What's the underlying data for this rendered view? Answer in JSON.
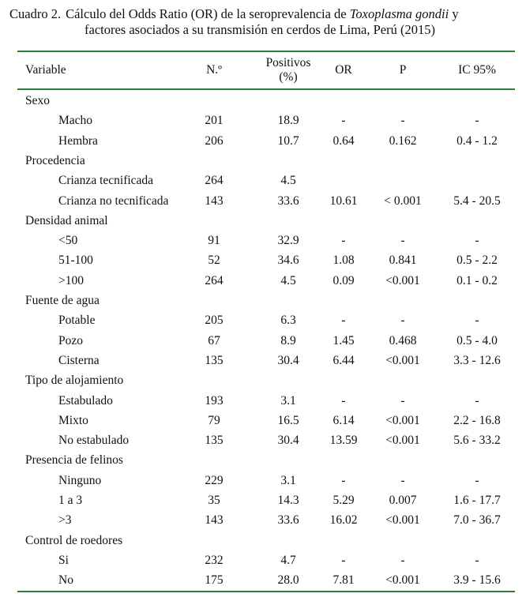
{
  "caption": {
    "number": "Cuadro 2.",
    "text_pre": "Cálculo del Odds Ratio (OR) de la seroprevalencia de ",
    "species": "Toxoplasma gondii",
    "text_post": " y",
    "line2": "factores asociados a su transmisión en cerdos de Lima, Perú (2015)"
  },
  "headers": {
    "variable": "Variable",
    "n": "N.º",
    "positivos_line1": "Positivos",
    "positivos_line2": "(%)",
    "or": "OR",
    "p": "P",
    "ic": "IC 95%"
  },
  "groups": [
    {
      "name": "Sexo",
      "rows": [
        {
          "label": "Macho",
          "n": "201",
          "pos": "18.9",
          "or": "-",
          "p": "-",
          "ic": "-"
        },
        {
          "label": "Hembra",
          "n": "206",
          "pos": "10.7",
          "or": "0.64",
          "p": "0.162",
          "ic": "0.4 - 1.2"
        }
      ]
    },
    {
      "name": "Procedencia",
      "rows": [
        {
          "label": "Crianza tecnificada",
          "n": "264",
          "pos": "4.5",
          "or": "",
          "p": "",
          "ic": ""
        },
        {
          "label": "Crianza no tecnificada",
          "n": "143",
          "pos": "33.6",
          "or": "10.61",
          "p": "< 0.001",
          "ic": "5.4 - 20.5"
        }
      ]
    },
    {
      "name": "Densidad animal",
      "rows": [
        {
          "label": "<50",
          "n": "91",
          "pos": "32.9",
          "or": "-",
          "p": "-",
          "ic": "-"
        },
        {
          "label": "51-100",
          "n": "52",
          "pos": "34.6",
          "or": "1.08",
          "p": "0.841",
          "ic": "0.5 - 2.2"
        },
        {
          "label": ">100",
          "n": "264",
          "pos": "4.5",
          "or": "0.09",
          "p": "<0.001",
          "ic": "0.1 - 0.2"
        }
      ]
    },
    {
      "name": "Fuente de agua",
      "rows": [
        {
          "label": "Potable",
          "n": "205",
          "pos": "6.3",
          "or": "-",
          "p": "-",
          "ic": "-"
        },
        {
          "label": "Pozo",
          "n": "67",
          "pos": "8.9",
          "or": "1.45",
          "p": "0.468",
          "ic": "0.5 - 4.0"
        },
        {
          "label": "Cisterna",
          "n": "135",
          "pos": "30.4",
          "or": "6.44",
          "p": "<0.001",
          "ic": "3.3 - 12.6"
        }
      ]
    },
    {
      "name": "Tipo de alojamiento",
      "rows": [
        {
          "label": "Estabulado",
          "n": "193",
          "pos": "3.1",
          "or": "-",
          "p": "-",
          "ic": "-"
        },
        {
          "label": "Mixto",
          "n": "79",
          "pos": "16.5",
          "or": "6.14",
          "p": "<0.001",
          "ic": "2.2 - 16.8"
        },
        {
          "label": "No estabulado",
          "n": "135",
          "pos": "30.4",
          "or": "13.59",
          "p": "<0.001",
          "ic": "5.6 - 33.2"
        }
      ]
    },
    {
      "name": "Presencia de felinos",
      "rows": [
        {
          "label": "Ninguno",
          "n": "229",
          "pos": "3.1",
          "or": "-",
          "p": "-",
          "ic": "-"
        },
        {
          "label": "1 a 3",
          "n": "35",
          "pos": "14.3",
          "or": "5.29",
          "p": "0.007",
          "ic": "1.6 - 17.7"
        },
        {
          "label": ">3",
          "n": "143",
          "pos": "33.6",
          "or": "16.02",
          "p": "<0.001",
          "ic": "7.0 - 36.7"
        }
      ]
    },
    {
      "name": "Control de roedores",
      "rows": [
        {
          "label": "Si",
          "n": "232",
          "pos": "4.7",
          "or": "-",
          "p": "-",
          "ic": "-"
        },
        {
          "label": "No",
          "n": "175",
          "pos": "28.0",
          "or": "7.81",
          "p": "<0.001",
          "ic": "3.9 - 15.6"
        }
      ]
    }
  ]
}
